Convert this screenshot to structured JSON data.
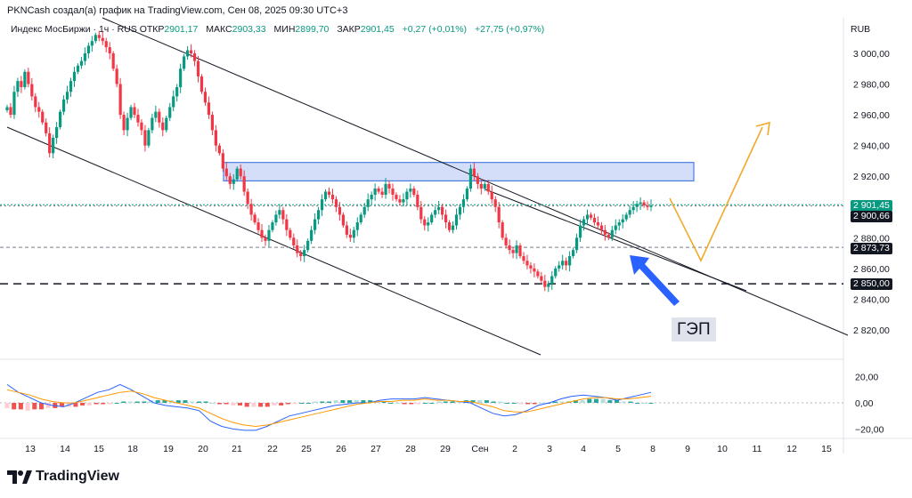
{
  "header": {
    "text": "PKNCash создал(а) график на TradingView.com, Сен 08, 2025 09:30 UTC+3"
  },
  "ohlc": {
    "instrument": "Индекс МосБиржи · 1ч · RUS",
    "open_label": "ОТКР",
    "open": "2901,17",
    "high_label": "МАКС",
    "high": "2903,33",
    "low_label": "МИН",
    "low": "2899,70",
    "close_label": "ЗАКР",
    "close": "2901,45",
    "change": "+0,27 (+0,01%)",
    "change2": "+27,75 (+0,97%)"
  },
  "currency": "RUB",
  "annotation": {
    "gap_label": "ГЭП"
  },
  "price_tags": {
    "current": "2 901,45",
    "level1": "2 900,66",
    "level2": "2 873,73",
    "level3": "2 850,00"
  },
  "branding": {
    "name": "TradingView"
  },
  "colors": {
    "up": "#089981",
    "down": "#f23645",
    "accent": "#2962ff",
    "projection": "#f0a92a",
    "zone_fill": "#c5d3f5",
    "zone_border": "#4a7de0"
  },
  "chart_data": [
    {
      "type": "candlestick",
      "price_axis": {
        "ticks": [
          "3 000,00",
          "2 980,00",
          "2 960,00",
          "2 940,00",
          "2 920,00",
          "2 900,00",
          "2 880,00",
          "2 860,00",
          "2 840,00",
          "2 820,00"
        ],
        "ylim": [
          2811,
          3018
        ]
      },
      "time_axis": {
        "ticks": [
          "13",
          "14",
          "15",
          "18",
          "19",
          "20",
          "21",
          "22",
          "25",
          "26",
          "27",
          "28",
          "29",
          "Сен",
          "2",
          "3",
          "4",
          "5",
          "8",
          "9",
          "10",
          "11",
          "12",
          "15"
        ]
      },
      "close_values": [
        2965,
        2960,
        2975,
        2982,
        2978,
        2988,
        2980,
        2972,
        2965,
        2962,
        2955,
        2948,
        2935,
        2945,
        2952,
        2962,
        2970,
        2975,
        2982,
        2988,
        2992,
        2995,
        3000,
        3005,
        3008,
        3012,
        3010,
        3008,
        3004,
        3000,
        2990,
        2980,
        2960,
        2950,
        2958,
        2965,
        2960,
        2955,
        2950,
        2940,
        2950,
        2958,
        2962,
        2955,
        2950,
        2958,
        2965,
        2972,
        2978,
        2990,
        2998,
        3002,
        3000,
        2995,
        2985,
        2975,
        2968,
        2960,
        2950,
        2940,
        2935,
        2925,
        2920,
        2915,
        2918,
        2925,
        2920,
        2910,
        2902,
        2895,
        2890,
        2885,
        2880,
        2878,
        2885,
        2890,
        2895,
        2898,
        2892,
        2885,
        2880,
        2875,
        2870,
        2868,
        2872,
        2878,
        2885,
        2892,
        2898,
        2905,
        2910,
        2908,
        2905,
        2900,
        2895,
        2888,
        2882,
        2880,
        2885,
        2890,
        2895,
        2900,
        2905,
        2908,
        2912,
        2910,
        2908,
        2915,
        2912,
        2908,
        2905,
        2903,
        2905,
        2910,
        2912,
        2908,
        2900,
        2892,
        2888,
        2890,
        2895,
        2898,
        2900,
        2895,
        2890,
        2885,
        2888,
        2895,
        2900,
        2905,
        2912,
        2925,
        2920,
        2915,
        2912,
        2915,
        2910,
        2905,
        2900,
        2890,
        2880,
        2875,
        2872,
        2870,
        2875,
        2868,
        2865,
        2862,
        2860,
        2858,
        2855,
        2852,
        2848,
        2850,
        2855,
        2860,
        2862,
        2865,
        2862,
        2868,
        2872,
        2880,
        2888,
        2892,
        2895,
        2893,
        2890,
        2888,
        2885,
        2882,
        2880,
        2885,
        2888,
        2890,
        2892,
        2895,
        2898,
        2900,
        2902,
        2903,
        2901,
        2900,
        2901
      ],
      "ohlc_current": {
        "open": 2901.17,
        "high": 2903.33,
        "low": 2899.7,
        "close": 2901.45
      },
      "trend_channel": {
        "upper": "descending resistance line",
        "lower": "descending support line",
        "middle": "descending line"
      },
      "horizontal_levels": [
        2900.66,
        2873.73,
        2850.0
      ],
      "zone": {
        "from": 2917,
        "to": 2929,
        "description": "resistance zone"
      },
      "projection": {
        "path": "down to ~2866 then up to ~2955",
        "color": "orange"
      },
      "annotation": "ГЭП"
    },
    {
      "type": "oscillator",
      "axis_ticks": [
        "20,00",
        "0,00",
        "−20,00"
      ],
      "ylim": [
        -25,
        28
      ],
      "histogram": [
        -4,
        -5,
        -5,
        -6,
        -5,
        -5,
        -4,
        -4,
        -3,
        -3,
        -3,
        -2,
        -2,
        -1,
        -1,
        -1,
        0,
        1,
        1,
        1,
        1,
        2,
        2,
        2,
        2,
        2,
        2,
        1,
        1,
        1,
        0,
        -1,
        -1,
        -2,
        -2,
        -3,
        -3,
        -3,
        -3,
        -2,
        -2,
        -1,
        -1,
        0,
        0,
        1,
        1,
        1,
        2,
        2,
        2,
        2,
        2,
        2,
        1,
        1,
        0,
        0,
        -1,
        -1,
        -1,
        0,
        0,
        1,
        1,
        1,
        1,
        2,
        2,
        2,
        2,
        1,
        1,
        0,
        0,
        -1,
        -1,
        -1,
        0,
        0,
        1,
        1,
        1,
        2,
        2,
        3,
        3,
        3,
        2,
        2,
        1,
        1,
        0,
        0,
        0
      ],
      "macd_line": [
        14,
        8,
        4,
        0,
        -2,
        -3,
        0,
        4,
        8,
        10,
        14,
        10,
        5,
        0,
        -2,
        -3,
        -4,
        -6,
        -14,
        -18,
        -20,
        -21,
        -21,
        -18,
        -14,
        -10,
        -8,
        -6,
        -4,
        -2,
        -1,
        0,
        0,
        2,
        3,
        3,
        3,
        4,
        3,
        2,
        1,
        0,
        -4,
        -8,
        -10,
        -9,
        -6,
        -2,
        0,
        3,
        5,
        6,
        5,
        4,
        2,
        4,
        6,
        8
      ],
      "signal_line": [
        10,
        8,
        6,
        3,
        1,
        0,
        0,
        2,
        4,
        6,
        8,
        9,
        7,
        4,
        2,
        0,
        -2,
        -4,
        -8,
        -12,
        -15,
        -17,
        -18,
        -17,
        -15,
        -13,
        -11,
        -9,
        -7,
        -5,
        -3,
        -1,
        0,
        1,
        1,
        2,
        2,
        3,
        2,
        2,
        1,
        1,
        -1,
        -3,
        -6,
        -7,
        -7,
        -5,
        -3,
        -1,
        1,
        3,
        4,
        4,
        3,
        3,
        4,
        5
      ]
    }
  ]
}
